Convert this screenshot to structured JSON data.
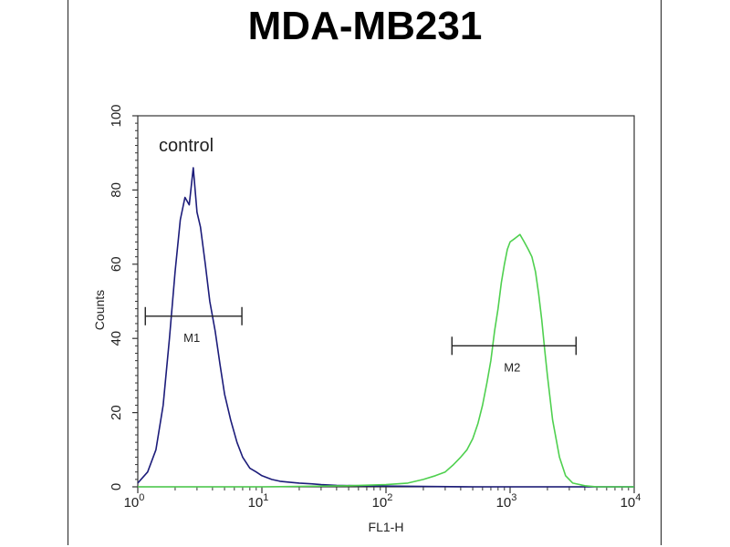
{
  "chart_data": {
    "type": "line",
    "title": "MDA-MB231",
    "xlabel": "FL1-H",
    "ylabel": "Counts",
    "x_scale": "log",
    "xlim": [
      1,
      10000
    ],
    "ylim": [
      0,
      100
    ],
    "y_ticks": [
      "0",
      "20",
      "40",
      "60",
      "80",
      "100"
    ],
    "x_ticks": [
      {
        "base": "10",
        "exp": "0",
        "value": 1
      },
      {
        "base": "10",
        "exp": "1",
        "value": 10
      },
      {
        "base": "10",
        "exp": "2",
        "value": 100
      },
      {
        "base": "10",
        "exp": "3",
        "value": 1000
      },
      {
        "base": "10",
        "exp": "4",
        "value": 10000
      }
    ],
    "annotation": "control",
    "series": [
      {
        "color": "#1c1c7a",
        "x": [
          1.0,
          1.2,
          1.4,
          1.6,
          1.8,
          2.0,
          2.2,
          2.4,
          2.6,
          2.8,
          3.0,
          3.2,
          3.5,
          3.8,
          4.2,
          4.6,
          5.0,
          5.6,
          6.3,
          7.0,
          8.0,
          9.0,
          10,
          12,
          14,
          17,
          20,
          25,
          30,
          40,
          60,
          100,
          200,
          500,
          1000,
          3000,
          10000
        ],
        "y": [
          1,
          4,
          10,
          22,
          40,
          58,
          72,
          78,
          76,
          86,
          74,
          70,
          60,
          50,
          42,
          33,
          25,
          18,
          12,
          8,
          5,
          4,
          3,
          2,
          1.5,
          1.2,
          1,
          0.8,
          0.6,
          0.4,
          0.3,
          0.2,
          0.1,
          0,
          0,
          0,
          0
        ]
      },
      {
        "color": "#4fd04f",
        "x": [
          1,
          10,
          50,
          100,
          150,
          200,
          250,
          300,
          350,
          400,
          450,
          500,
          550,
          600,
          650,
          700,
          750,
          800,
          850,
          900,
          950,
          1000,
          1100,
          1200,
          1300,
          1400,
          1500,
          1600,
          1700,
          1800,
          1900,
          2000,
          2200,
          2500,
          2800,
          3200,
          4000,
          5000,
          7000,
          10000
        ],
        "y": [
          0,
          0,
          0.3,
          0.6,
          1,
          2,
          3,
          4,
          6,
          8,
          10,
          13,
          17,
          22,
          28,
          34,
          42,
          48,
          55,
          60,
          64,
          66,
          67,
          68,
          66,
          64,
          62,
          58,
          52,
          45,
          37,
          30,
          18,
          8,
          3,
          1,
          0.3,
          0,
          0,
          0
        ]
      }
    ],
    "markers": [
      {
        "label": "M1",
        "x_start": 1.15,
        "x_end": 6.9,
        "y": 46
      },
      {
        "label": "M2",
        "x_start": 340,
        "x_end": 3400,
        "y": 38
      }
    ]
  }
}
